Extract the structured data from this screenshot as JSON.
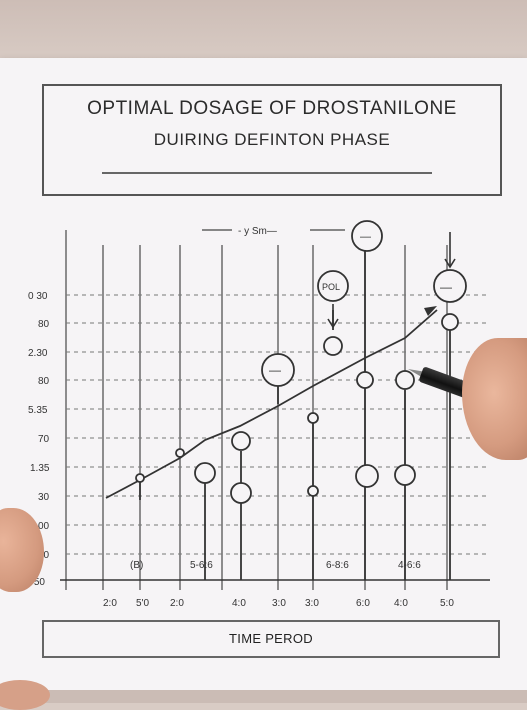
{
  "title": {
    "line1": "OPTIMAL  DOSAGE OF DROSTANILONE",
    "line2": "DUIRING DEFINTON PHASE"
  },
  "chart": {
    "top_label": "- y  Sm—",
    "y_labels": [
      "0 30",
      "80",
      "2.30",
      "80",
      "5.35",
      "70",
      "1.35",
      "30",
      "00",
      "50",
      "+50"
    ],
    "x_labels": [
      "2:0",
      "5'0",
      "2:0",
      "4:0",
      "3:0",
      "3:0",
      "6:0",
      "4:0",
      "5:0"
    ],
    "annotations": [
      "(B)",
      "5-6:6",
      "6-8:6",
      "4-6:6"
    ],
    "circle_marks": [
      "POL",
      "—",
      "—",
      "—"
    ]
  },
  "footer": {
    "label": "TIME PEROD"
  }
}
